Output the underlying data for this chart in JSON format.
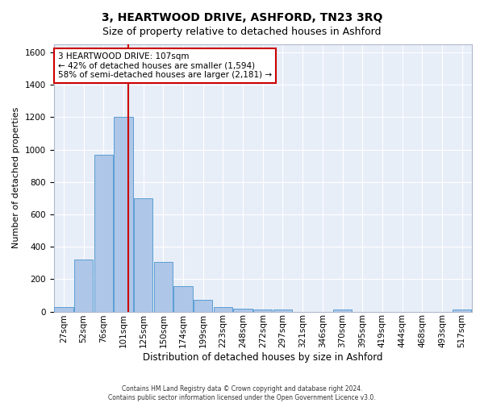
{
  "title": "3, HEARTWOOD DRIVE, ASHFORD, TN23 3RQ",
  "subtitle": "Size of property relative to detached houses in Ashford",
  "xlabel": "Distribution of detached houses by size in Ashford",
  "ylabel": "Number of detached properties",
  "bar_labels": [
    "27sqm",
    "52sqm",
    "76sqm",
    "101sqm",
    "125sqm",
    "150sqm",
    "174sqm",
    "199sqm",
    "223sqm",
    "248sqm",
    "272sqm",
    "297sqm",
    "321sqm",
    "346sqm",
    "370sqm",
    "395sqm",
    "419sqm",
    "444sqm",
    "468sqm",
    "493sqm",
    "517sqm"
  ],
  "bar_heights": [
    30,
    320,
    970,
    1200,
    700,
    305,
    155,
    70,
    30,
    20,
    15,
    15,
    0,
    0,
    12,
    0,
    0,
    0,
    0,
    0,
    12
  ],
  "bar_color": "#aec6e8",
  "bar_edge_color": "#5a9fd4",
  "background_color": "#e8eef8",
  "grid_color": "#ffffff",
  "annotation_text": "3 HEARTWOOD DRIVE: 107sqm\n← 42% of detached houses are smaller (1,594)\n58% of semi-detached houses are larger (2,181) →",
  "annotation_box_color": "#ffffff",
  "annotation_box_edge_color": "#cc0000",
  "property_line_x": 3.25,
  "property_line_color": "#cc0000",
  "ylim": [
    0,
    1650
  ],
  "yticks": [
    0,
    200,
    400,
    600,
    800,
    1000,
    1200,
    1400,
    1600
  ],
  "footer": "Contains HM Land Registry data © Crown copyright and database right 2024.\nContains public sector information licensed under the Open Government Licence v3.0.",
  "title_fontsize": 10,
  "subtitle_fontsize": 9,
  "xlabel_fontsize": 8.5,
  "ylabel_fontsize": 8,
  "tick_fontsize": 7.5,
  "annotation_fontsize": 7.5,
  "footer_fontsize": 5.5
}
